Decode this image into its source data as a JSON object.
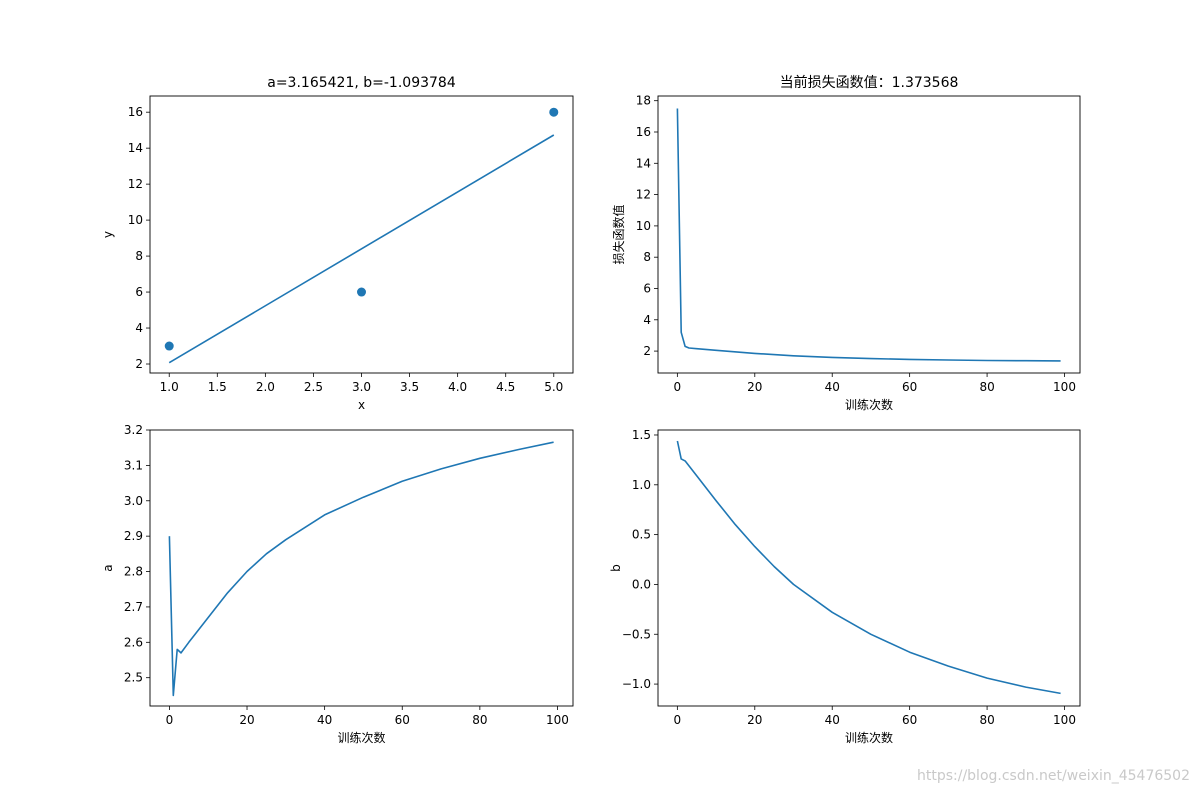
{
  "watermark": "https://blog.csdn.net/weixin_45476502",
  "chart_data": [
    {
      "type": "scatter",
      "title": "a=3.165421, b=-1.093784",
      "xlabel": "x",
      "ylabel": "y",
      "xlim": [
        0.8,
        5.2
      ],
      "ylim": [
        1.5,
        16.9
      ],
      "xticks": [
        1.0,
        1.5,
        2.0,
        2.5,
        3.0,
        3.5,
        4.0,
        4.5,
        5.0
      ],
      "xtick_labels": [
        "1.0",
        "1.5",
        "2.0",
        "2.5",
        "3.0",
        "3.5",
        "4.0",
        "4.5",
        "5.0"
      ],
      "yticks": [
        2,
        4,
        6,
        8,
        10,
        12,
        14,
        16
      ],
      "ytick_labels": [
        "2",
        "4",
        "6",
        "8",
        "10",
        "12",
        "14",
        "16"
      ],
      "points": {
        "x": [
          1,
          3,
          5
        ],
        "y": [
          3,
          6,
          16
        ]
      },
      "line": {
        "x": [
          1,
          5
        ],
        "y": [
          2.07,
          14.73
        ]
      },
      "color": "#1f77b4"
    },
    {
      "type": "line",
      "title": "当前损失函数值：1.373568",
      "xlabel": "训练次数",
      "ylabel": "损失函数值",
      "xlim": [
        -5,
        104
      ],
      "ylim": [
        0.6,
        18.3
      ],
      "xticks": [
        0,
        20,
        40,
        60,
        80,
        100
      ],
      "xtick_labels": [
        "0",
        "20",
        "40",
        "60",
        "80",
        "100"
      ],
      "yticks": [
        2,
        4,
        6,
        8,
        10,
        12,
        14,
        16,
        18
      ],
      "ytick_labels": [
        "2",
        "4",
        "6",
        "8",
        "10",
        "12",
        "14",
        "16",
        "18"
      ],
      "x": [
        0,
        1,
        2,
        3,
        5,
        10,
        20,
        30,
        40,
        50,
        60,
        70,
        80,
        90,
        99
      ],
      "y": [
        17.5,
        3.2,
        2.3,
        2.2,
        2.15,
        2.05,
        1.85,
        1.7,
        1.6,
        1.52,
        1.47,
        1.43,
        1.4,
        1.385,
        1.3736
      ],
      "color": "#1f77b4"
    },
    {
      "type": "line",
      "title": "",
      "xlabel": "训练次数",
      "ylabel": "a",
      "xlim": [
        -5,
        104
      ],
      "ylim": [
        2.42,
        3.2
      ],
      "xticks": [
        0,
        20,
        40,
        60,
        80,
        100
      ],
      "xtick_labels": [
        "0",
        "20",
        "40",
        "60",
        "80",
        "100"
      ],
      "yticks": [
        2.5,
        2.6,
        2.7,
        2.8,
        2.9,
        3.0,
        3.1,
        3.2
      ],
      "ytick_labels": [
        "2.5",
        "2.6",
        "2.7",
        "2.8",
        "2.9",
        "3.0",
        "3.1",
        "3.2"
      ],
      "x": [
        0,
        1,
        2,
        3,
        5,
        10,
        15,
        20,
        25,
        30,
        40,
        50,
        60,
        70,
        80,
        90,
        99
      ],
      "y": [
        2.9,
        2.45,
        2.58,
        2.57,
        2.6,
        2.67,
        2.74,
        2.8,
        2.85,
        2.89,
        2.96,
        3.01,
        3.055,
        3.09,
        3.12,
        3.145,
        3.1654
      ],
      "color": "#1f77b4"
    },
    {
      "type": "line",
      "title": "",
      "xlabel": "训练次数",
      "ylabel": "b",
      "xlim": [
        -5,
        104
      ],
      "ylim": [
        -1.22,
        1.55
      ],
      "xticks": [
        0,
        20,
        40,
        60,
        80,
        100
      ],
      "xtick_labels": [
        "0",
        "20",
        "40",
        "60",
        "80",
        "100"
      ],
      "yticks": [
        -1.0,
        -0.5,
        0.0,
        0.5,
        1.0,
        1.5
      ],
      "ytick_labels": [
        "−1.0",
        "−0.5",
        "0.0",
        "0.5",
        "1.0",
        "1.5"
      ],
      "x": [
        0,
        1,
        2,
        5,
        10,
        15,
        20,
        25,
        30,
        40,
        50,
        60,
        70,
        80,
        90,
        99
      ],
      "y": [
        1.44,
        1.26,
        1.24,
        1.09,
        0.84,
        0.6,
        0.38,
        0.18,
        0.0,
        -0.28,
        -0.5,
        -0.68,
        -0.82,
        -0.94,
        -1.03,
        -1.0938
      ],
      "color": "#1f77b4"
    }
  ]
}
